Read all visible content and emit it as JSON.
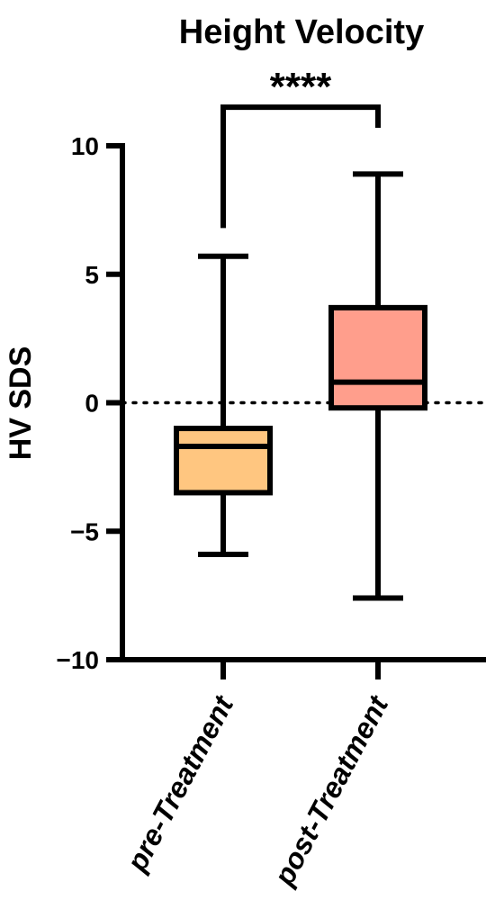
{
  "chart_data": {
    "type": "box",
    "title": "Height Velocity",
    "xlabel": "",
    "ylabel": "HV SDS",
    "ylim": [
      -10,
      10
    ],
    "yticks": [
      -10,
      -5,
      0,
      5,
      10
    ],
    "ytick_labels": [
      "−10",
      "−5",
      "0",
      "5",
      "10"
    ],
    "reference_line": {
      "y": 0,
      "style": "dotted"
    },
    "categories": [
      "pre-Treatment",
      "post-Treatment"
    ],
    "boxes": [
      {
        "name": "pre-Treatment",
        "min": -5.9,
        "q1": -3.5,
        "median": -1.7,
        "q3": -1.0,
        "max": 5.7,
        "color": "#FFC680"
      },
      {
        "name": "post-Treatment",
        "min": -7.6,
        "q1": -0.2,
        "median": 0.8,
        "q3": 3.7,
        "max": 8.9,
        "color": "#FF9E8C"
      }
    ],
    "significance": {
      "label": "****",
      "between": [
        0,
        1
      ],
      "y_left": 6.8,
      "y_right": 10.7,
      "y_top": 11.5
    }
  }
}
